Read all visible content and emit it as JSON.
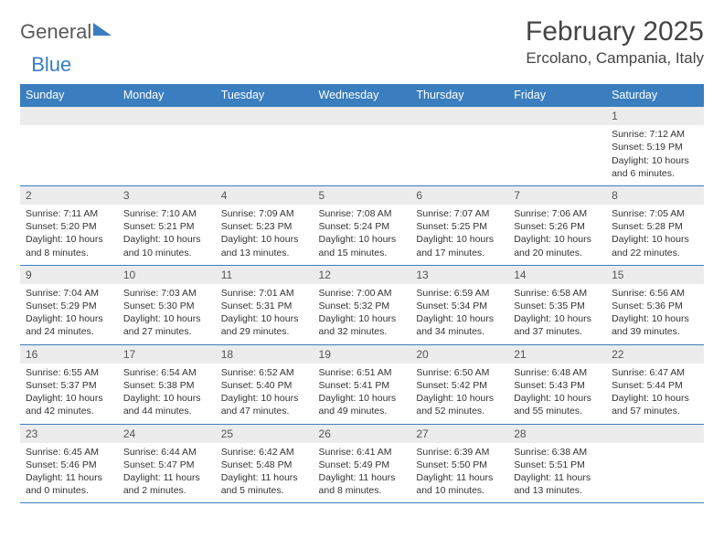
{
  "brand": {
    "part1": "General",
    "part2": "Blue"
  },
  "title": "February 2025",
  "location": "Ercolano, Campania, Italy",
  "colors": {
    "header_bg": "#3a7ebf",
    "header_text": "#ffffff",
    "daynum_bg": "#ececec",
    "border": "#3a7ebf",
    "page_bg": "#ffffff",
    "text": "#333333"
  },
  "typography": {
    "base_fontsize_pt": 8,
    "title_fontsize_pt": 22,
    "location_fontsize_pt": 13
  },
  "day_headers": [
    "Sunday",
    "Monday",
    "Tuesday",
    "Wednesday",
    "Thursday",
    "Friday",
    "Saturday"
  ],
  "weeks": [
    [
      null,
      null,
      null,
      null,
      null,
      null,
      {
        "n": "1",
        "sunrise": "7:12 AM",
        "sunset": "5:19 PM",
        "dl_h": "10",
        "dl_m": "6"
      }
    ],
    [
      {
        "n": "2",
        "sunrise": "7:11 AM",
        "sunset": "5:20 PM",
        "dl_h": "10",
        "dl_m": "8"
      },
      {
        "n": "3",
        "sunrise": "7:10 AM",
        "sunset": "5:21 PM",
        "dl_h": "10",
        "dl_m": "10"
      },
      {
        "n": "4",
        "sunrise": "7:09 AM",
        "sunset": "5:23 PM",
        "dl_h": "10",
        "dl_m": "13"
      },
      {
        "n": "5",
        "sunrise": "7:08 AM",
        "sunset": "5:24 PM",
        "dl_h": "10",
        "dl_m": "15"
      },
      {
        "n": "6",
        "sunrise": "7:07 AM",
        "sunset": "5:25 PM",
        "dl_h": "10",
        "dl_m": "17"
      },
      {
        "n": "7",
        "sunrise": "7:06 AM",
        "sunset": "5:26 PM",
        "dl_h": "10",
        "dl_m": "20"
      },
      {
        "n": "8",
        "sunrise": "7:05 AM",
        "sunset": "5:28 PM",
        "dl_h": "10",
        "dl_m": "22"
      }
    ],
    [
      {
        "n": "9",
        "sunrise": "7:04 AM",
        "sunset": "5:29 PM",
        "dl_h": "10",
        "dl_m": "24"
      },
      {
        "n": "10",
        "sunrise": "7:03 AM",
        "sunset": "5:30 PM",
        "dl_h": "10",
        "dl_m": "27"
      },
      {
        "n": "11",
        "sunrise": "7:01 AM",
        "sunset": "5:31 PM",
        "dl_h": "10",
        "dl_m": "29"
      },
      {
        "n": "12",
        "sunrise": "7:00 AM",
        "sunset": "5:32 PM",
        "dl_h": "10",
        "dl_m": "32"
      },
      {
        "n": "13",
        "sunrise": "6:59 AM",
        "sunset": "5:34 PM",
        "dl_h": "10",
        "dl_m": "34"
      },
      {
        "n": "14",
        "sunrise": "6:58 AM",
        "sunset": "5:35 PM",
        "dl_h": "10",
        "dl_m": "37"
      },
      {
        "n": "15",
        "sunrise": "6:56 AM",
        "sunset": "5:36 PM",
        "dl_h": "10",
        "dl_m": "39"
      }
    ],
    [
      {
        "n": "16",
        "sunrise": "6:55 AM",
        "sunset": "5:37 PM",
        "dl_h": "10",
        "dl_m": "42"
      },
      {
        "n": "17",
        "sunrise": "6:54 AM",
        "sunset": "5:38 PM",
        "dl_h": "10",
        "dl_m": "44"
      },
      {
        "n": "18",
        "sunrise": "6:52 AM",
        "sunset": "5:40 PM",
        "dl_h": "10",
        "dl_m": "47"
      },
      {
        "n": "19",
        "sunrise": "6:51 AM",
        "sunset": "5:41 PM",
        "dl_h": "10",
        "dl_m": "49"
      },
      {
        "n": "20",
        "sunrise": "6:50 AM",
        "sunset": "5:42 PM",
        "dl_h": "10",
        "dl_m": "52"
      },
      {
        "n": "21",
        "sunrise": "6:48 AM",
        "sunset": "5:43 PM",
        "dl_h": "10",
        "dl_m": "55"
      },
      {
        "n": "22",
        "sunrise": "6:47 AM",
        "sunset": "5:44 PM",
        "dl_h": "10",
        "dl_m": "57"
      }
    ],
    [
      {
        "n": "23",
        "sunrise": "6:45 AM",
        "sunset": "5:46 PM",
        "dl_h": "11",
        "dl_m": "0"
      },
      {
        "n": "24",
        "sunrise": "6:44 AM",
        "sunset": "5:47 PM",
        "dl_h": "11",
        "dl_m": "2"
      },
      {
        "n": "25",
        "sunrise": "6:42 AM",
        "sunset": "5:48 PM",
        "dl_h": "11",
        "dl_m": "5"
      },
      {
        "n": "26",
        "sunrise": "6:41 AM",
        "sunset": "5:49 PM",
        "dl_h": "11",
        "dl_m": "8"
      },
      {
        "n": "27",
        "sunrise": "6:39 AM",
        "sunset": "5:50 PM",
        "dl_h": "11",
        "dl_m": "10"
      },
      {
        "n": "28",
        "sunrise": "6:38 AM",
        "sunset": "5:51 PM",
        "dl_h": "11",
        "dl_m": "13"
      },
      null
    ]
  ],
  "labels": {
    "sunrise": "Sunrise:",
    "sunset": "Sunset:",
    "daylight": "Daylight:",
    "hours": "hours",
    "and": "and",
    "minutes": "minutes."
  }
}
